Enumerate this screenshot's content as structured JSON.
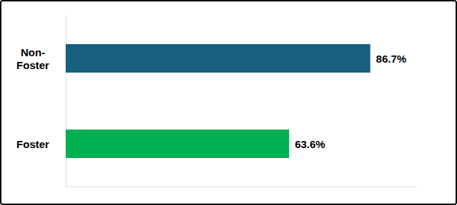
{
  "chart_data": {
    "type": "bar",
    "orientation": "horizontal",
    "categories": [
      "Non-Foster",
      "Foster"
    ],
    "values": [
      86.7,
      63.6
    ],
    "value_labels": [
      "86.7%",
      "63.6%"
    ],
    "colors": [
      "#17607f",
      "#00b050"
    ],
    "xlim": [
      0,
      100
    ],
    "data_labels": true,
    "tick_labels": "y",
    "grid": false
  }
}
